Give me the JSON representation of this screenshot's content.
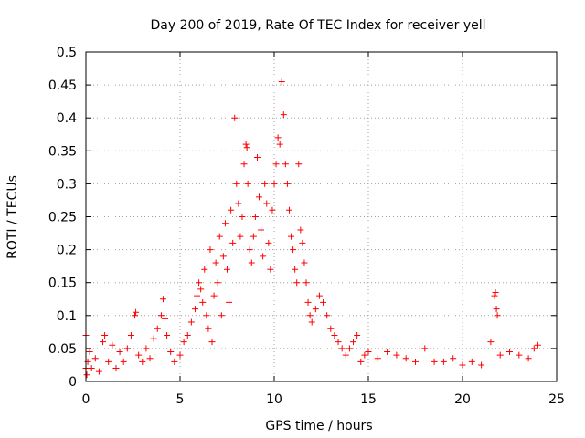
{
  "chart_data": {
    "type": "scatter",
    "title": "Day 200 of 2019, Rate Of TEC Index for receiver yell",
    "xlabel": "GPS time / hours",
    "ylabel": "ROTI / TECUs",
    "xlim": [
      0,
      25
    ],
    "ylim": [
      0,
      0.5
    ],
    "x_ticks": [
      0,
      5,
      10,
      15,
      20,
      25
    ],
    "x_tick_labels": [
      "0",
      "5",
      "10",
      "15",
      "20",
      "25"
    ],
    "y_ticks": [
      0,
      0.05,
      0.1,
      0.15,
      0.2,
      0.25,
      0.3,
      0.35,
      0.4,
      0.45,
      0.5
    ],
    "y_tick_labels": [
      "0",
      "0.05",
      "0.1",
      "0.15",
      "0.2",
      "0.25",
      "0.3",
      "0.35",
      "0.4",
      "0.45",
      "0.5"
    ],
    "grid": true,
    "marker": "+",
    "marker_color": "#ff0000",
    "grid_color": "#a0a0a0",
    "series": [
      {
        "name": "ROTI",
        "points": [
          [
            0.0,
            0.07
          ],
          [
            0.0,
            0.02
          ],
          [
            0.05,
            0.01
          ],
          [
            0.1,
            0.03
          ],
          [
            0.2,
            0.045
          ],
          [
            0.3,
            0.02
          ],
          [
            0.5,
            0.035
          ],
          [
            0.7,
            0.015
          ],
          [
            0.9,
            0.06
          ],
          [
            1.0,
            0.07
          ],
          [
            1.2,
            0.03
          ],
          [
            1.4,
            0.055
          ],
          [
            1.6,
            0.02
          ],
          [
            1.8,
            0.045
          ],
          [
            2.0,
            0.03
          ],
          [
            2.2,
            0.05
          ],
          [
            2.4,
            0.07
          ],
          [
            2.6,
            0.1
          ],
          [
            2.65,
            0.105
          ],
          [
            2.8,
            0.04
          ],
          [
            3.0,
            0.03
          ],
          [
            3.2,
            0.05
          ],
          [
            3.4,
            0.035
          ],
          [
            3.6,
            0.065
          ],
          [
            3.8,
            0.08
          ],
          [
            4.0,
            0.1
          ],
          [
            4.1,
            0.125
          ],
          [
            4.2,
            0.095
          ],
          [
            4.3,
            0.07
          ],
          [
            4.5,
            0.045
          ],
          [
            4.7,
            0.03
          ],
          [
            5.0,
            0.04
          ],
          [
            5.2,
            0.06
          ],
          [
            5.4,
            0.07
          ],
          [
            5.6,
            0.09
          ],
          [
            5.8,
            0.11
          ],
          [
            5.9,
            0.13
          ],
          [
            6.0,
            0.15
          ],
          [
            6.1,
            0.14
          ],
          [
            6.2,
            0.12
          ],
          [
            6.3,
            0.17
          ],
          [
            6.4,
            0.1
          ],
          [
            6.5,
            0.08
          ],
          [
            6.6,
            0.2
          ],
          [
            6.7,
            0.06
          ],
          [
            6.8,
            0.13
          ],
          [
            6.9,
            0.18
          ],
          [
            7.0,
            0.15
          ],
          [
            7.1,
            0.22
          ],
          [
            7.2,
            0.1
          ],
          [
            7.3,
            0.19
          ],
          [
            7.4,
            0.24
          ],
          [
            7.5,
            0.17
          ],
          [
            7.6,
            0.12
          ],
          [
            7.7,
            0.26
          ],
          [
            7.8,
            0.21
          ],
          [
            7.9,
            0.4
          ],
          [
            8.0,
            0.3
          ],
          [
            8.1,
            0.27
          ],
          [
            8.2,
            0.22
          ],
          [
            8.3,
            0.25
          ],
          [
            8.4,
            0.33
          ],
          [
            8.5,
            0.36
          ],
          [
            8.55,
            0.355
          ],
          [
            8.6,
            0.3
          ],
          [
            8.7,
            0.2
          ],
          [
            8.8,
            0.18
          ],
          [
            8.9,
            0.22
          ],
          [
            9.0,
            0.25
          ],
          [
            9.1,
            0.34
          ],
          [
            9.2,
            0.28
          ],
          [
            9.3,
            0.23
          ],
          [
            9.4,
            0.19
          ],
          [
            9.5,
            0.3
          ],
          [
            9.6,
            0.27
          ],
          [
            9.7,
            0.21
          ],
          [
            9.8,
            0.17
          ],
          [
            9.9,
            0.26
          ],
          [
            10.0,
            0.3
          ],
          [
            10.1,
            0.33
          ],
          [
            10.2,
            0.37
          ],
          [
            10.3,
            0.36
          ],
          [
            10.4,
            0.455
          ],
          [
            10.5,
            0.405
          ],
          [
            10.6,
            0.33
          ],
          [
            10.7,
            0.3
          ],
          [
            10.8,
            0.26
          ],
          [
            10.9,
            0.22
          ],
          [
            11.0,
            0.2
          ],
          [
            11.1,
            0.17
          ],
          [
            11.2,
            0.15
          ],
          [
            11.3,
            0.33
          ],
          [
            11.4,
            0.23
          ],
          [
            11.5,
            0.21
          ],
          [
            11.6,
            0.18
          ],
          [
            11.7,
            0.15
          ],
          [
            11.8,
            0.12
          ],
          [
            11.9,
            0.1
          ],
          [
            12.0,
            0.09
          ],
          [
            12.2,
            0.11
          ],
          [
            12.4,
            0.13
          ],
          [
            12.6,
            0.12
          ],
          [
            12.8,
            0.1
          ],
          [
            13.0,
            0.08
          ],
          [
            13.2,
            0.07
          ],
          [
            13.4,
            0.06
          ],
          [
            13.6,
            0.05
          ],
          [
            13.8,
            0.04
          ],
          [
            14.0,
            0.05
          ],
          [
            14.2,
            0.06
          ],
          [
            14.4,
            0.07
          ],
          [
            14.6,
            0.03
          ],
          [
            14.8,
            0.04
          ],
          [
            15.0,
            0.045
          ],
          [
            15.5,
            0.035
          ],
          [
            16.0,
            0.045
          ],
          [
            16.5,
            0.04
          ],
          [
            17.0,
            0.035
          ],
          [
            17.5,
            0.03
          ],
          [
            18.0,
            0.05
          ],
          [
            18.5,
            0.03
          ],
          [
            19.0,
            0.03
          ],
          [
            19.5,
            0.035
          ],
          [
            20.0,
            0.025
          ],
          [
            20.5,
            0.03
          ],
          [
            21.0,
            0.025
          ],
          [
            21.5,
            0.06
          ],
          [
            21.7,
            0.13
          ],
          [
            21.75,
            0.135
          ],
          [
            21.8,
            0.11
          ],
          [
            21.85,
            0.1
          ],
          [
            22.0,
            0.04
          ],
          [
            22.5,
            0.045
          ],
          [
            23.0,
            0.04
          ],
          [
            23.5,
            0.035
          ],
          [
            23.8,
            0.05
          ],
          [
            24.0,
            0.055
          ]
        ]
      }
    ]
  }
}
